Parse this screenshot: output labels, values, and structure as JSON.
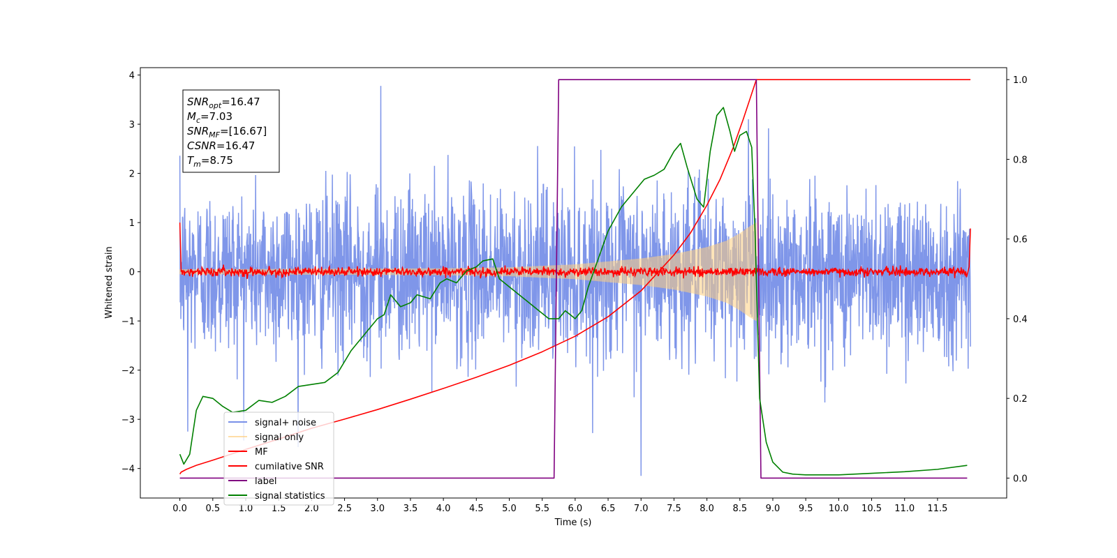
{
  "chart_data": {
    "type": "line",
    "title": "",
    "xlabel": "Time (s)",
    "ylabel": "Whitened strain",
    "ylabel_right": "",
    "xlim": [
      -0.6,
      12.55
    ],
    "ylim": [
      -4.6,
      4.15
    ],
    "ylim_right": [
      -0.05,
      1.03
    ],
    "x_ticks": [
      0.0,
      0.5,
      1.0,
      1.5,
      2.0,
      2.5,
      3.0,
      3.5,
      4.0,
      4.5,
      5.0,
      5.5,
      6.0,
      6.5,
      7.0,
      7.5,
      8.0,
      8.5,
      9.0,
      9.5,
      10.0,
      10.5,
      11.0,
      11.5
    ],
    "x_tick_labels": [
      "0.0",
      "0.5",
      "1.0",
      "1.5",
      "2.0",
      "2.5",
      "3.0",
      "3.5",
      "4.0",
      "4.5",
      "5.0",
      "5.5",
      "6.0",
      "6.5",
      "7.0",
      "7.5",
      "8.0",
      "8.5",
      "9.0",
      "9.5",
      "10.0",
      "10.5",
      "11.0",
      "11.5"
    ],
    "y_ticks": [
      -4,
      -3,
      -2,
      -1,
      0,
      1,
      2,
      3,
      4
    ],
    "y_tick_labels": [
      "−4",
      "−3",
      "−2",
      "−1",
      "0",
      "1",
      "2",
      "3",
      "4"
    ],
    "y_ticks_right": [
      0.0,
      0.2,
      0.4,
      0.6,
      0.8,
      1.0
    ],
    "y_tick_labels_right": [
      "0.0",
      "0.2",
      "0.4",
      "0.6",
      "0.8",
      "1.0"
    ],
    "grid": false,
    "legend_position": "lower-left",
    "legend": [
      {
        "label": "signal+ noise",
        "color": "#7890e8"
      },
      {
        "label": "signal only",
        "color": "#ffcf80"
      },
      {
        "label": "MF",
        "color": "#ff0000"
      },
      {
        "label": "cumilative SNR",
        "color": "#ff0000"
      },
      {
        "label": "label",
        "color": "#800080"
      },
      {
        "label": "signal statistics",
        "color": "#008000"
      }
    ],
    "info_box": {
      "position": "top-left",
      "lines": [
        {
          "name": "SNR",
          "sub": "opt",
          "value": "=16.47"
        },
        {
          "name": "M",
          "sub": "c",
          "value": "=7.03"
        },
        {
          "name": "SNR",
          "sub": "MF",
          "value": "=[16.67]"
        },
        {
          "name": "CSNR",
          "sub": "",
          "value": "=16.47"
        },
        {
          "name": "T",
          "sub": "m",
          "value": "=8.75"
        }
      ]
    },
    "series": [
      {
        "name": "signal+ noise",
        "axis": "left",
        "color": "#7890e8",
        "kind": "noise",
        "x_range": [
          0.0,
          12.0
        ],
        "std": 0.85,
        "extremes": [
          [
            3.05,
            3.78
          ],
          [
            7.0,
            -4.15
          ],
          [
            0.12,
            -3.25
          ],
          [
            8.63,
            3.1
          ]
        ]
      },
      {
        "name": "signal only",
        "axis": "left",
        "color": "#ffcf80",
        "kind": "chirp_envelope",
        "x_range": [
          0.0,
          8.75
        ],
        "envelope": [
          [
            0.0,
            0.05
          ],
          [
            2.0,
            0.06
          ],
          [
            4.0,
            0.07
          ],
          [
            5.0,
            0.09
          ],
          [
            6.0,
            0.15
          ],
          [
            7.0,
            0.27
          ],
          [
            7.5,
            0.36
          ],
          [
            8.0,
            0.5
          ],
          [
            8.3,
            0.63
          ],
          [
            8.5,
            0.78
          ],
          [
            8.65,
            0.92
          ],
          [
            8.75,
            1.0
          ]
        ]
      },
      {
        "name": "MF",
        "axis": "left",
        "color": "#ff0000",
        "kind": "mf",
        "x_range": [
          0.0,
          12.0
        ],
        "noise_std": 0.045,
        "edge_values": [
          [
            0.0,
            1.0
          ],
          [
            12.0,
            0.88
          ]
        ]
      },
      {
        "name": "cumilative SNR",
        "axis": "right",
        "color": "#ff0000",
        "x": [
          0.0,
          0.02,
          0.1,
          0.25,
          0.5,
          1.0,
          1.5,
          2.0,
          2.5,
          3.0,
          3.5,
          4.0,
          4.5,
          5.0,
          5.5,
          6.0,
          6.5,
          7.0,
          7.5,
          7.75,
          8.0,
          8.2,
          8.4,
          8.55,
          8.65,
          8.72,
          8.75,
          8.76,
          12.0
        ],
        "y": [
          0.01,
          0.015,
          0.022,
          0.032,
          0.045,
          0.072,
          0.098,
          0.125,
          0.148,
          0.172,
          0.198,
          0.225,
          0.253,
          0.283,
          0.317,
          0.356,
          0.405,
          0.47,
          0.56,
          0.615,
          0.685,
          0.75,
          0.83,
          0.9,
          0.95,
          0.985,
          1.0,
          1.0,
          1.0
        ]
      },
      {
        "name": "label",
        "axis": "right",
        "color": "#800080",
        "x": [
          0.0,
          5.68,
          5.75,
          8.75,
          8.82,
          11.95
        ],
        "y": [
          0.0,
          0.0,
          1.0,
          1.0,
          0.0,
          0.0
        ]
      },
      {
        "name": "signal statistics",
        "axis": "right",
        "color": "#008000",
        "x": [
          0.0,
          0.06,
          0.15,
          0.25,
          0.35,
          0.5,
          0.65,
          0.8,
          1.0,
          1.2,
          1.4,
          1.6,
          1.8,
          2.0,
          2.2,
          2.4,
          2.6,
          2.8,
          3.0,
          3.1,
          3.2,
          3.35,
          3.5,
          3.6,
          3.8,
          3.95,
          4.05,
          4.2,
          4.35,
          4.5,
          4.6,
          4.75,
          4.85,
          5.0,
          5.15,
          5.3,
          5.45,
          5.6,
          5.75,
          5.85,
          6.0,
          6.1,
          6.2,
          6.35,
          6.5,
          6.7,
          6.9,
          7.05,
          7.2,
          7.35,
          7.5,
          7.6,
          7.7,
          7.85,
          7.95,
          8.05,
          8.15,
          8.25,
          8.35,
          8.42,
          8.5,
          8.6,
          8.68,
          8.73,
          8.8,
          8.9,
          9.0,
          9.15,
          9.3,
          9.5,
          10.0,
          10.5,
          11.0,
          11.5,
          11.95
        ],
        "y": [
          0.06,
          0.035,
          0.06,
          0.17,
          0.205,
          0.2,
          0.18,
          0.165,
          0.17,
          0.195,
          0.19,
          0.205,
          0.23,
          0.235,
          0.24,
          0.265,
          0.32,
          0.36,
          0.4,
          0.41,
          0.46,
          0.43,
          0.44,
          0.46,
          0.45,
          0.49,
          0.5,
          0.49,
          0.52,
          0.53,
          0.545,
          0.55,
          0.5,
          0.48,
          0.46,
          0.44,
          0.42,
          0.4,
          0.4,
          0.42,
          0.4,
          0.42,
          0.48,
          0.55,
          0.62,
          0.68,
          0.72,
          0.75,
          0.76,
          0.775,
          0.82,
          0.84,
          0.78,
          0.7,
          0.68,
          0.82,
          0.91,
          0.93,
          0.87,
          0.82,
          0.86,
          0.87,
          0.83,
          0.62,
          0.2,
          0.09,
          0.04,
          0.015,
          0.01,
          0.008,
          0.008,
          0.012,
          0.016,
          0.022,
          0.032
        ]
      }
    ]
  }
}
